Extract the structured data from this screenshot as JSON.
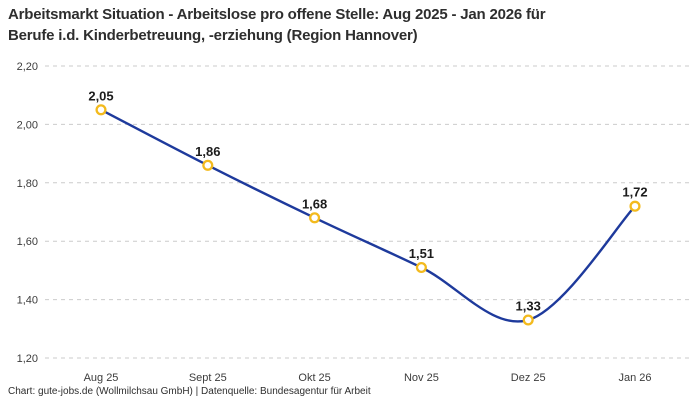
{
  "title": {
    "line1": "Arbeitsmarkt Situation - Arbeitslose pro offene Stelle: Aug 2025 - Jan 2026 für",
    "line2": "Berufe i.d. Kinderbetreuung, -erziehung (Region Hannover)"
  },
  "footer": "Chart: gute-jobs.de (Wollmilchsau GmbH) | Datenquelle: Bundesagentur für Arbeit",
  "chart_data": {
    "type": "line",
    "title": "Arbeitsmarkt Situation - Arbeitslose pro offene Stelle: Aug 2025 - Jan 2026 für Berufe i.d. Kinderbetreuung, -erziehung (Region Hannover)",
    "categories": [
      "Aug 25",
      "Sept 25",
      "Okt 25",
      "Nov 25",
      "Dez 25",
      "Jan 26"
    ],
    "values": [
      2.05,
      1.86,
      1.68,
      1.51,
      1.33,
      1.72
    ],
    "labels": [
      "2,05",
      "1,86",
      "1,68",
      "1,51",
      "1,33",
      "1,72"
    ],
    "xlabel": "",
    "ylabel": "",
    "ylim": [
      1.2,
      2.2
    ],
    "yticks": [
      "2,20",
      "2,00",
      "1,80",
      "1,60",
      "1,40",
      "1,20"
    ],
    "grid": "dashed-horizontal",
    "legend": "none",
    "curve": "smooth-spline",
    "line_color": "#1e3a9c",
    "marker_color": "#f3ba1d",
    "marker_fill": "#ffffff",
    "grid_color": "#cbcbcb",
    "tick_color": "#3c3c3c",
    "label_color": "#1c1c1c"
  }
}
